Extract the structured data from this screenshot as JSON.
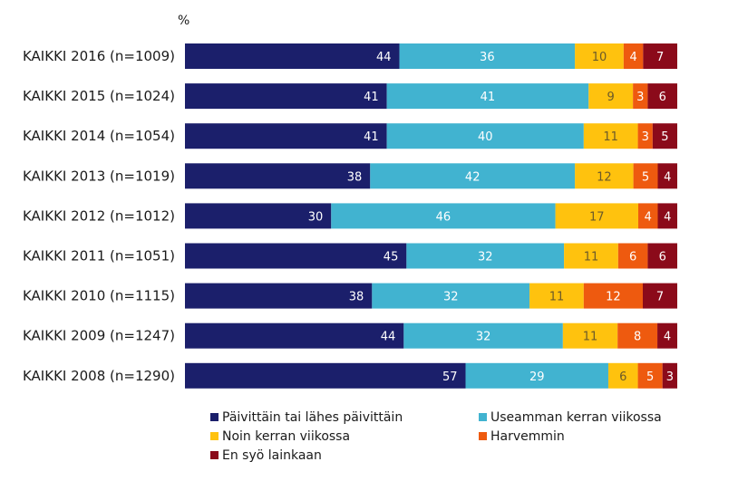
{
  "chart_data": {
    "type": "bar",
    "orientation": "horizontal",
    "stacked": true,
    "unit_label": "%",
    "title": "",
    "xlabel": "",
    "ylabel": "",
    "xlim": [
      0,
      100
    ],
    "grid": false,
    "legend_position": "bottom",
    "categories": [
      "KAIKKI 2016 (n=1009)",
      "KAIKKI 2015 (n=1024)",
      "KAIKKI 2014 (n=1054)",
      "KAIKKI 2013 (n=1019)",
      "KAIKKI 2012 (n=1012)",
      "KAIKKI 2011 (n=1051)",
      "KAIKKI 2010 (n=1115)",
      "KAIKKI 2009 (n=1247)",
      "KAIKKI 2008 (n=1290)"
    ],
    "series": [
      {
        "name": "Päivittäin tai lähes päivittäin",
        "color": "#1b1f6b",
        "label_color": "#ffffff",
        "values": [
          44,
          41,
          41,
          38,
          30,
          45,
          38,
          44,
          57
        ]
      },
      {
        "name": "Useamman kerran viikossa",
        "color": "#41b3d0",
        "label_color": "#ffffff",
        "values": [
          36,
          41,
          40,
          42,
          46,
          32,
          32,
          32,
          29
        ]
      },
      {
        "name": "Noin kerran viikossa",
        "color": "#ffc20e",
        "label_color": "#6b5a2a",
        "values": [
          10,
          9,
          11,
          12,
          17,
          11,
          11,
          11,
          6
        ]
      },
      {
        "name": "Harvemmin",
        "color": "#ee5a0f",
        "label_color": "#ffffff",
        "values": [
          4,
          3,
          3,
          5,
          4,
          6,
          12,
          8,
          5
        ]
      },
      {
        "name": "En syö lainkaan",
        "color": "#8b0a1a",
        "label_color": "#ffffff",
        "values": [
          7,
          6,
          5,
          4,
          4,
          6,
          7,
          4,
          3
        ]
      }
    ]
  }
}
